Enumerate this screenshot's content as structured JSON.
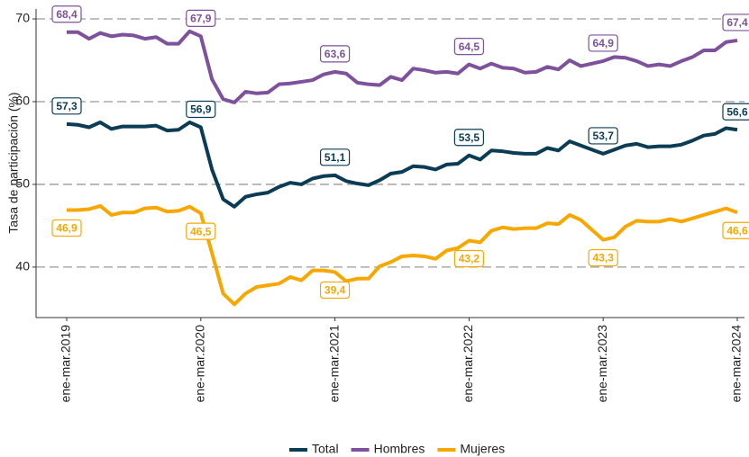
{
  "chart_data": {
    "type": "line",
    "y_label": "Tasa de participación (%)",
    "categories": [
      "ene-mar.2019",
      null,
      null,
      null,
      null,
      null,
      null,
      null,
      null,
      null,
      null,
      null,
      "ene-mar.2020",
      null,
      null,
      null,
      null,
      null,
      null,
      null,
      null,
      null,
      null,
      null,
      "ene-mar.2021",
      null,
      null,
      null,
      null,
      null,
      null,
      null,
      null,
      null,
      null,
      null,
      "ene-mar.2022",
      null,
      null,
      null,
      null,
      null,
      null,
      null,
      null,
      null,
      null,
      null,
      "ene-mar.2023",
      null,
      null,
      null,
      null,
      null,
      null,
      null,
      null,
      null,
      null,
      null,
      "ene-mar.2024"
    ],
    "series": [
      {
        "name": "Total",
        "color": "#0b3c55",
        "values": [
          57.3,
          57.2,
          56.9,
          57.5,
          56.7,
          57.0,
          57.0,
          57.0,
          57.1,
          56.5,
          56.6,
          57.5,
          56.9,
          51.8,
          48.2,
          47.3,
          48.5,
          48.8,
          49.0,
          49.7,
          50.2,
          50.0,
          50.7,
          51.0,
          51.1,
          50.4,
          50.1,
          49.9,
          50.5,
          51.3,
          51.5,
          52.2,
          52.1,
          51.8,
          52.4,
          52.5,
          53.5,
          53.0,
          54.1,
          54.0,
          53.8,
          53.7,
          53.7,
          54.4,
          54.1,
          55.2,
          54.7,
          54.2,
          53.7,
          54.2,
          54.7,
          54.9,
          54.5,
          54.6,
          54.6,
          54.8,
          55.3,
          55.9,
          56.1,
          56.8,
          56.6
        ],
        "value_labels": [
          "57,3",
          null,
          null,
          null,
          null,
          null,
          null,
          null,
          null,
          null,
          null,
          null,
          "56,9",
          null,
          null,
          null,
          null,
          null,
          null,
          null,
          null,
          null,
          null,
          null,
          "51,1",
          null,
          null,
          null,
          null,
          null,
          null,
          null,
          null,
          null,
          null,
          null,
          "53,5",
          null,
          null,
          null,
          null,
          null,
          null,
          null,
          null,
          null,
          null,
          null,
          "53,7",
          null,
          null,
          null,
          null,
          null,
          null,
          null,
          null,
          null,
          null,
          null,
          "56,6"
        ]
      },
      {
        "name": "Hombres",
        "color": "#7d519c",
        "values": [
          68.4,
          68.4,
          67.6,
          68.3,
          67.9,
          68.1,
          68.0,
          67.6,
          67.8,
          67.0,
          67.0,
          68.5,
          67.9,
          62.7,
          60.3,
          59.9,
          61.2,
          61.0,
          61.1,
          62.1,
          62.2,
          62.4,
          62.6,
          63.3,
          63.6,
          63.4,
          62.3,
          62.1,
          62.0,
          63.0,
          62.6,
          64.0,
          63.8,
          63.5,
          63.6,
          63.4,
          64.5,
          64.0,
          64.6,
          64.1,
          64.0,
          63.5,
          63.6,
          64.2,
          63.9,
          65.0,
          64.3,
          64.6,
          64.9,
          65.4,
          65.3,
          64.9,
          64.3,
          64.5,
          64.3,
          64.9,
          65.4,
          66.2,
          66.2,
          67.2,
          67.4
        ],
        "value_labels": [
          "68,4",
          null,
          null,
          null,
          null,
          null,
          null,
          null,
          null,
          null,
          null,
          null,
          "67,9",
          null,
          null,
          null,
          null,
          null,
          null,
          null,
          null,
          null,
          null,
          null,
          "63,6",
          null,
          null,
          null,
          null,
          null,
          null,
          null,
          null,
          null,
          null,
          null,
          "64,5",
          null,
          null,
          null,
          null,
          null,
          null,
          null,
          null,
          null,
          null,
          null,
          "64,9",
          null,
          null,
          null,
          null,
          null,
          null,
          null,
          null,
          null,
          null,
          null,
          "67,4"
        ]
      },
      {
        "name": "Mujeres",
        "color": "#f6a800",
        "values": [
          46.9,
          46.9,
          47.0,
          47.4,
          46.3,
          46.6,
          46.6,
          47.1,
          47.2,
          46.7,
          46.8,
          47.3,
          46.5,
          41.7,
          36.8,
          35.5,
          36.8,
          37.6,
          37.8,
          38.0,
          38.8,
          38.4,
          39.6,
          39.6,
          39.4,
          38.3,
          38.6,
          38.6,
          40.1,
          40.6,
          41.3,
          41.4,
          41.3,
          41.0,
          42.0,
          42.3,
          43.2,
          43.0,
          44.4,
          44.8,
          44.6,
          44.7,
          44.7,
          45.3,
          45.2,
          46.3,
          45.7,
          44.5,
          43.3,
          43.6,
          44.9,
          45.6,
          45.5,
          45.5,
          45.8,
          45.5,
          45.9,
          46.3,
          46.7,
          47.1,
          46.6
        ],
        "value_labels": [
          "46,9",
          null,
          null,
          null,
          null,
          null,
          null,
          null,
          null,
          null,
          null,
          null,
          "46,5",
          null,
          null,
          null,
          null,
          null,
          null,
          null,
          null,
          null,
          null,
          null,
          "39,4",
          null,
          null,
          null,
          null,
          null,
          null,
          null,
          null,
          null,
          null,
          null,
          "43,2",
          null,
          null,
          null,
          null,
          null,
          null,
          null,
          null,
          null,
          null,
          null,
          "43,3",
          null,
          null,
          null,
          null,
          null,
          null,
          null,
          null,
          null,
          null,
          null,
          "46,6"
        ]
      }
    ],
    "ylim": [
      33.9,
      71.2
    ],
    "yticks": [
      40,
      50,
      60,
      70
    ],
    "grid": true,
    "legend": "bottom"
  }
}
